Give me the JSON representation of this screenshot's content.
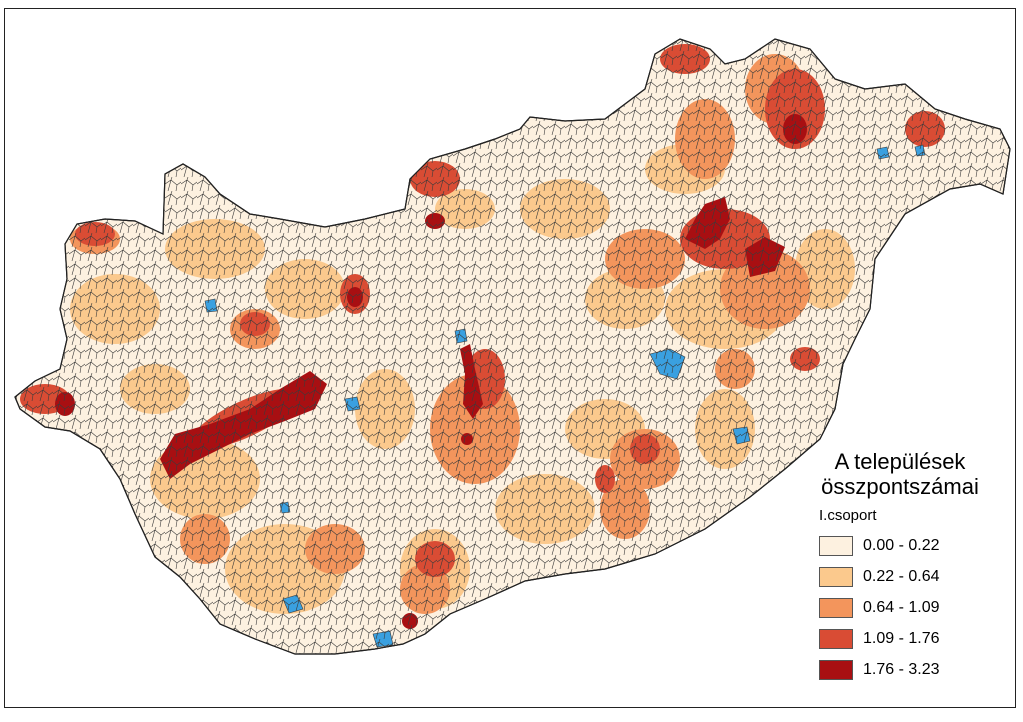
{
  "legend": {
    "title_line1": "A települések",
    "title_line2": "összpontszámai",
    "subtitle": "I.csoport",
    "classes": [
      {
        "label": "0.00 - 0.22",
        "color": "#fdf1e0"
      },
      {
        "label": "0.22 - 0.64",
        "color": "#fbc98d"
      },
      {
        "label": "0.64 - 1.09",
        "color": "#f3955c"
      },
      {
        "label": "1.09 - 1.76",
        "color": "#d94c34"
      },
      {
        "label": "1.76 - 3.23",
        "color": "#a80f12"
      }
    ]
  },
  "map": {
    "base_color": "#fdf1e0",
    "boundary_color": "#3a3a3a",
    "water_color": "#3aa0e0"
  }
}
